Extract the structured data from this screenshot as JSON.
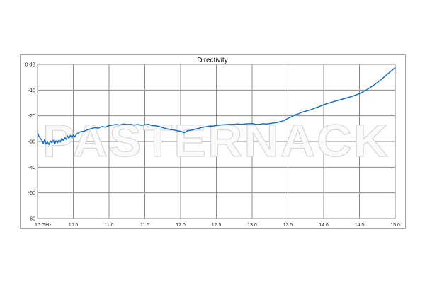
{
  "chart_data": {
    "type": "line",
    "title": "Directivity",
    "watermark": "PASTERNACK",
    "xlabel": "",
    "ylabel": "",
    "xlim": [
      10.0,
      15.0
    ],
    "ylim": [
      -60,
      0
    ],
    "grid": true,
    "line_color": "#1a6fc4",
    "x_ticks": [
      "10 GHz",
      "10.5",
      "11.0",
      "11.5",
      "12.0",
      "12.5",
      "13.0",
      "13.5",
      "14.0",
      "14.5",
      "15.0"
    ],
    "y_ticks": [
      "0 dB",
      "-10",
      "-20",
      "-30",
      "-40",
      "-50",
      "-60"
    ],
    "series": [
      {
        "x": [
          10.0,
          10.02,
          10.04,
          10.06,
          10.08,
          10.1,
          10.12,
          10.14,
          10.16,
          10.18,
          10.2,
          10.22,
          10.24,
          10.26,
          10.28,
          10.3,
          10.32,
          10.34,
          10.36,
          10.38,
          10.4,
          10.42,
          10.44,
          10.46,
          10.48,
          10.5,
          10.52,
          10.55,
          10.6,
          10.65,
          10.7,
          10.75,
          10.8,
          10.85,
          10.9,
          10.95,
          11.0,
          11.05,
          11.1,
          11.15,
          11.2,
          11.25,
          11.3,
          11.35,
          11.4,
          11.45,
          11.5,
          11.55,
          11.6,
          11.65,
          11.7,
          11.75,
          11.8,
          11.85,
          11.9,
          11.95,
          12.0,
          12.05,
          12.1,
          12.15,
          12.2,
          12.25,
          12.3,
          12.35,
          12.4,
          12.45,
          12.5,
          12.55,
          12.6,
          12.65,
          12.7,
          12.75,
          12.8,
          12.85,
          12.9,
          12.95,
          13.0,
          13.05,
          13.1,
          13.15,
          13.2,
          13.25,
          13.3,
          13.35,
          13.4,
          13.45,
          13.5,
          13.55,
          13.6,
          13.65,
          13.7,
          13.75,
          13.8,
          13.85,
          13.9,
          13.95,
          14.0,
          14.1,
          14.2,
          14.3,
          14.4,
          14.5,
          14.6,
          14.7,
          14.8,
          14.9,
          15.0
        ],
        "y": [
          -26.5,
          -28,
          -28.8,
          -29.5,
          -30.8,
          -29.2,
          -31,
          -30.2,
          -31.2,
          -29.8,
          -30.5,
          -29.5,
          -31,
          -29.8,
          -30.5,
          -29.5,
          -30.2,
          -28.8,
          -29.6,
          -28.5,
          -29.2,
          -27.8,
          -28.8,
          -27.6,
          -28.6,
          -27.4,
          -28.2,
          -27,
          -26.2,
          -26,
          -25.4,
          -25,
          -24.6,
          -24.8,
          -24.2,
          -24.4,
          -23.8,
          -23.6,
          -23.4,
          -23.6,
          -23.2,
          -23.4,
          -23.3,
          -23.6,
          -23.4,
          -23.7,
          -23.5,
          -23.3,
          -23.8,
          -23.9,
          -24.2,
          -24.6,
          -25,
          -25.3,
          -25.5,
          -25.8,
          -26,
          -26.6,
          -25.8,
          -25.6,
          -25.2,
          -24.9,
          -24.5,
          -24.3,
          -24,
          -24,
          -23.8,
          -23.6,
          -23.5,
          -23.4,
          -23.3,
          -23.3,
          -23.2,
          -23.3,
          -23.2,
          -23.1,
          -23,
          -23.3,
          -23.3,
          -23.1,
          -23.2,
          -23,
          -22.8,
          -22.6,
          -22.2,
          -21.8,
          -21,
          -20.4,
          -19.6,
          -19.2,
          -18.6,
          -18.2,
          -17.8,
          -17.3,
          -16.8,
          -16.3,
          -15.7,
          -14.8,
          -14,
          -13.2,
          -12.4,
          -11.4,
          -9.9,
          -8.1,
          -6,
          -3.6,
          -1.2
        ]
      }
    ]
  }
}
